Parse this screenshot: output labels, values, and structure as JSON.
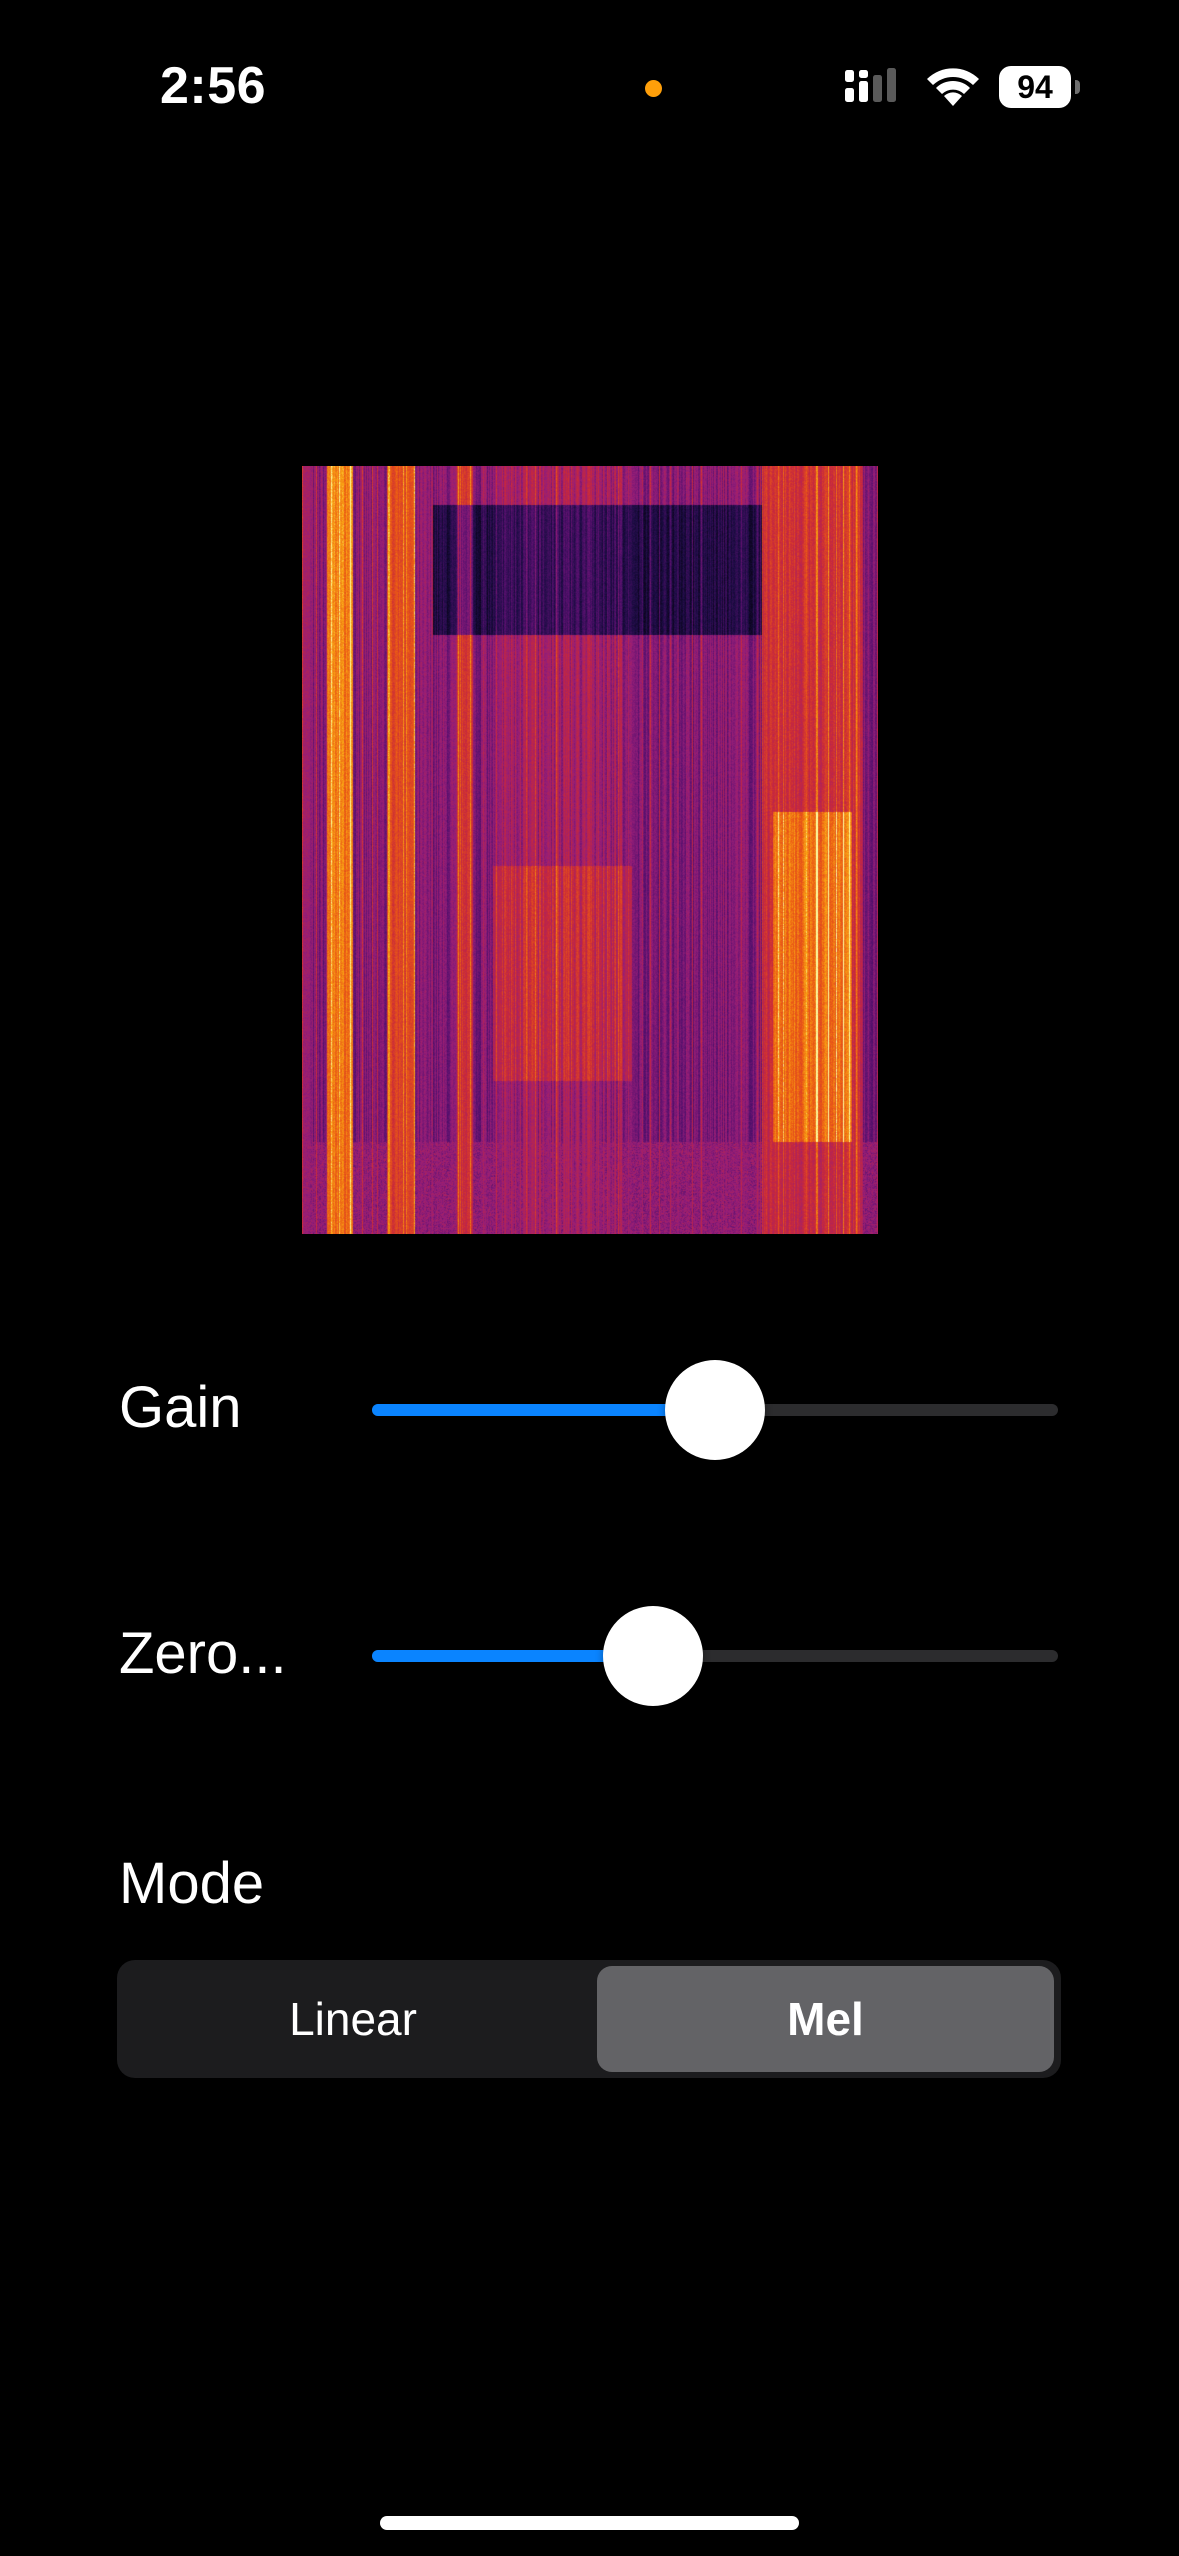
{
  "status_bar": {
    "time": "2:56",
    "battery_percent": "94",
    "mic_indicator_color": "#ff9f0a",
    "icons": [
      "signal-icon",
      "wifi-icon",
      "battery-icon"
    ]
  },
  "spectrogram": {
    "colormap": "inferno"
  },
  "controls": {
    "gain": {
      "label": "Gain",
      "value_fraction": 0.5
    },
    "zero": {
      "label": "Zero...",
      "value_fraction": 0.41
    }
  },
  "mode": {
    "label": "Mode",
    "options": [
      "Linear",
      "Mel"
    ],
    "selected": "Mel"
  },
  "colors": {
    "accent": "#0a84ff",
    "track": "#2c2c2e",
    "segment_bg": "#1c1c1e",
    "segment_selected": "#636366"
  }
}
